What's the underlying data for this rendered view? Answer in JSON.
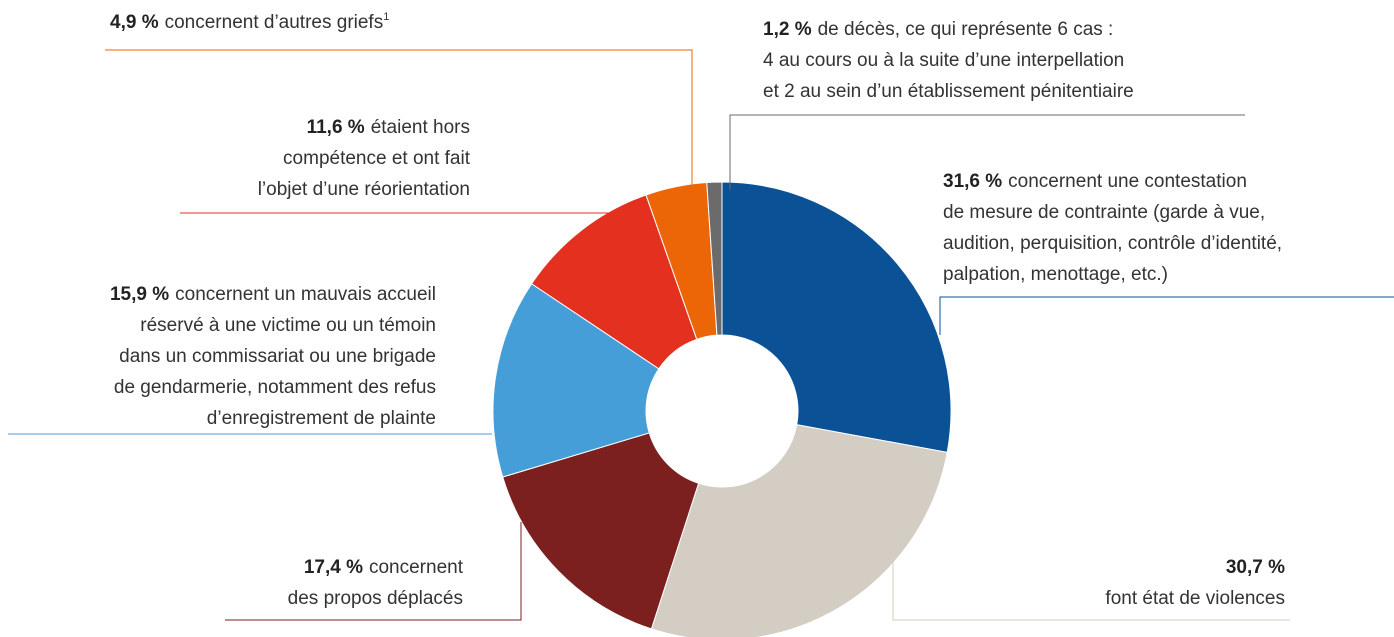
{
  "chart_data": {
    "type": "donut",
    "values": [
      31.6,
      30.7,
      17.4,
      15.9,
      11.6,
      4.9,
      1.2
    ],
    "value_labels": [
      "31,6 %",
      "30,7 %",
      "17,4 %",
      "15,9 %",
      "11,6 %",
      "4,9 %",
      "1,2 %"
    ],
    "colors": [
      "#0b5196",
      "#d3cdc4",
      "#7b1f1f",
      "#459ed8",
      "#e3301f",
      "#ec6608",
      "#6b6b6b"
    ],
    "categories": [
      [
        "concernent une contestation",
        "de mesure de contrainte (garde à vue,",
        "audition, perquisition, contrôle d’identité,",
        "palpation, menottage, etc.)"
      ],
      [
        "font état de violences"
      ],
      [
        "concernent",
        "des propos déplacés"
      ],
      [
        "concernent un mauvais accueil",
        "réservé à une victime ou un témoin",
        "dans un commissariat ou une brigade",
        "de gendarmerie, notamment des refus",
        "d’enregistrement de plainte"
      ],
      [
        "étaient hors",
        "compétence et ont fait",
        "l’objet d’une réorientation"
      ],
      [
        "concernent d’autres griefs"
      ],
      [
        "de décès, ce qui représente 6 cas :",
        "4 au cours ou à la suite d’une interpellation",
        "et 2 au sein d’un établissement pénitentiaire"
      ]
    ],
    "footnote_ref": "1"
  }
}
